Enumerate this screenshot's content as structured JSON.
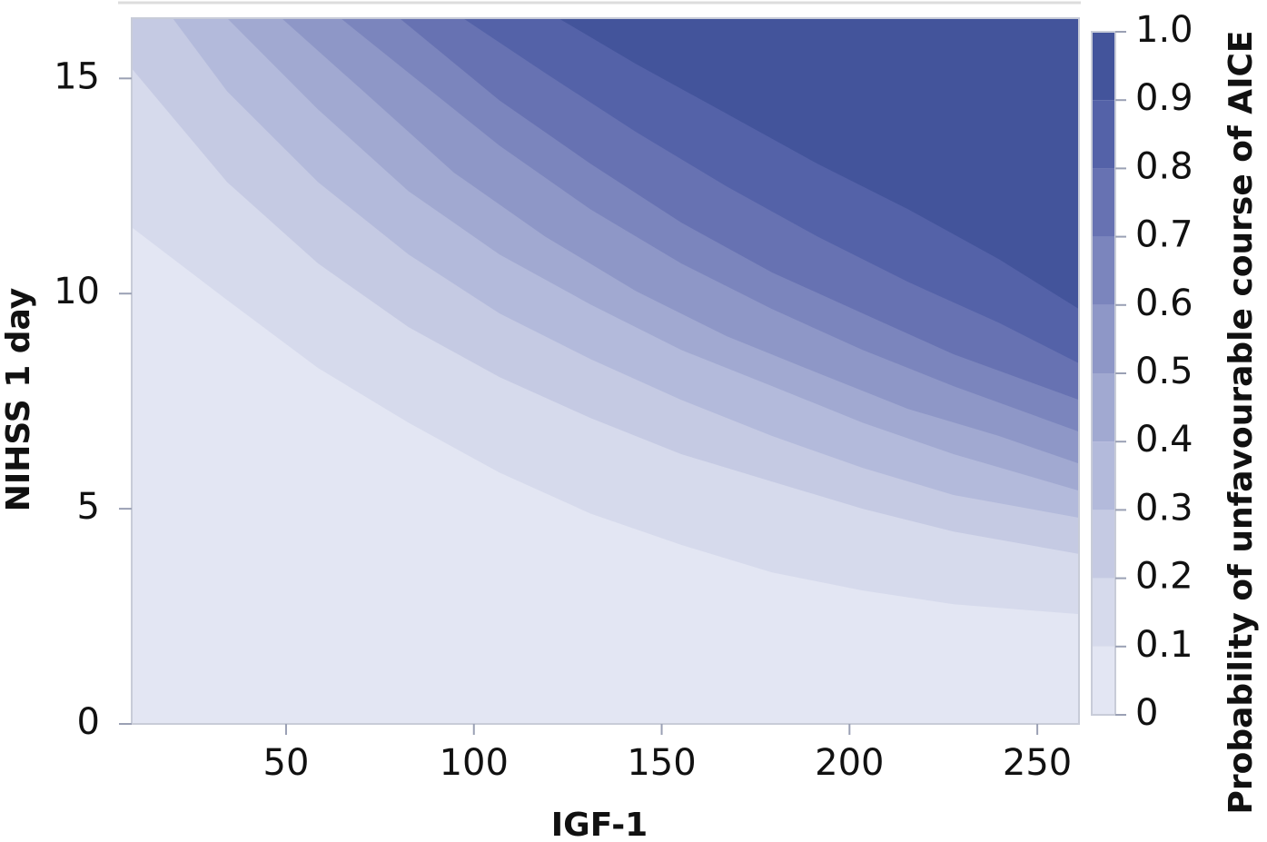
{
  "chart_data": {
    "type": "contour",
    "xlabel": "IGF-1",
    "ylabel": "NIHSS 1 day",
    "colorbar_label": "Probability of unfavourable course of AICE",
    "xlim": [
      8.9,
      261.1
    ],
    "ylim": [
      0,
      16.4
    ],
    "xticks": [
      50,
      100,
      150,
      200,
      250
    ],
    "yticks": [
      0,
      5,
      10,
      15
    ],
    "colors": [
      "#e3e6f3",
      "#d6daec",
      "#c5cae3",
      "#b3badb",
      "#a1a9d1",
      "#8e97c7",
      "#7b85bd",
      "#6772b2",
      "#5462a8",
      "#43549b"
    ],
    "cbticks": [
      0,
      0.1,
      0.2,
      0.3,
      0.4,
      0.5,
      0.6,
      0.7,
      0.8,
      0.9,
      {
        "value": 1,
        "label": "1.0"
      }
    ],
    "contours": [
      {
        "x": [
          8.9,
          34.3,
          58.5,
          82.6,
          106.8,
          131.0,
          155.2,
          179.4,
          203.5,
          227.7,
          261.1
        ],
        "y": [
          11.54,
          9.85,
          8.27,
          7.0,
          5.84,
          4.89,
          4.16,
          3.52,
          3.1,
          2.78,
          2.55
        ]
      },
      {
        "x": [
          8.9,
          34.3,
          58.5,
          82.6,
          106.8,
          131.0,
          155.2,
          179.4,
          203.5,
          227.7,
          261.1
        ],
        "y": [
          15.23,
          12.59,
          10.7,
          9.22,
          8.06,
          7.11,
          6.27,
          5.63,
          5.0,
          4.47,
          3.95
        ]
      },
      {
        "x": [
          19.8,
          34.3,
          58.5,
          82.6,
          106.8,
          131.0,
          155.2,
          179.4,
          203.5,
          227.7,
          261.1
        ],
        "y": [
          16.4,
          14.7,
          12.59,
          10.91,
          9.54,
          8.48,
          7.53,
          6.69,
          5.95,
          5.32,
          4.79
        ]
      },
      {
        "x": [
          34.3,
          58.5,
          82.6,
          106.8,
          131.0,
          155.2,
          179.4,
          203.5,
          227.7,
          261.1
        ],
        "y": [
          16.4,
          14.28,
          12.38,
          10.91,
          9.75,
          8.69,
          7.85,
          7.0,
          6.27,
          5.42
        ]
      },
      {
        "x": [
          48.8,
          70.6,
          94.7,
          118.9,
          143.1,
          167.3,
          191.4,
          215.6,
          239.8,
          261.1
        ],
        "y": [
          16.4,
          14.7,
          12.81,
          11.33,
          10.06,
          9.01,
          8.16,
          7.32,
          6.69,
          6.05
        ]
      },
      {
        "x": [
          64.5,
          82.6,
          106.8,
          131.0,
          155.2,
          179.4,
          203.5,
          227.7,
          261.1
        ],
        "y": [
          16.4,
          15.13,
          13.44,
          11.96,
          10.7,
          9.64,
          8.69,
          7.85,
          6.79
        ]
      },
      {
        "x": [
          80.2,
          106.8,
          131.0,
          155.2,
          179.4,
          203.5,
          227.7,
          261.1
        ],
        "y": [
          16.4,
          14.49,
          13.02,
          11.65,
          10.49,
          9.54,
          8.59,
          7.53
        ]
      },
      {
        "x": [
          97.1,
          118.9,
          143.1,
          167.3,
          191.4,
          215.6,
          239.8,
          261.1
        ],
        "y": [
          16.4,
          15.13,
          13.76,
          12.49,
          11.33,
          10.27,
          9.32,
          8.38
        ]
      },
      {
        "x": [
          122.5,
          143.1,
          167.3,
          191.4,
          215.6,
          239.8,
          261.1
        ],
        "y": [
          16.4,
          15.34,
          14.18,
          13.02,
          11.96,
          10.8,
          9.64
        ]
      }
    ]
  }
}
